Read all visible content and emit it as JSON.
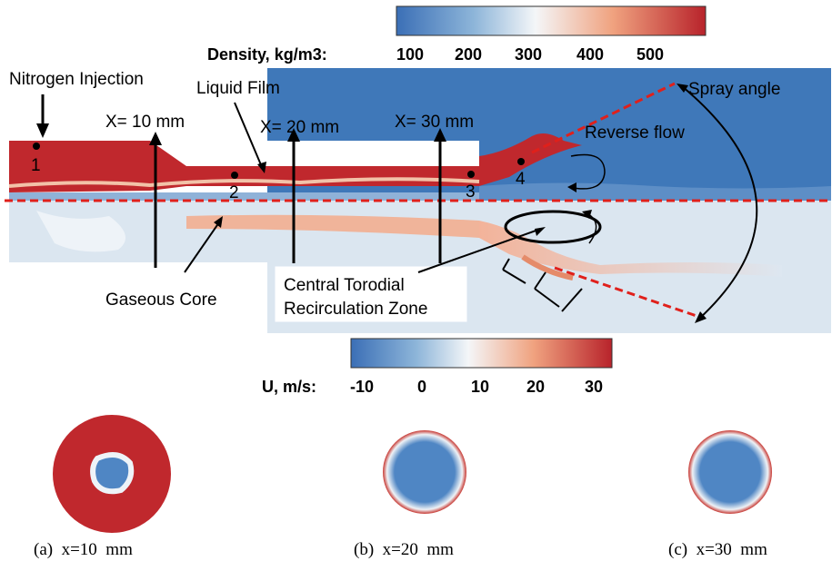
{
  "density_bar": {
    "title": "Density, kg/m3:",
    "ticks": [
      "100",
      "200",
      "300",
      "400",
      "500"
    ]
  },
  "velocity_bar": {
    "title": "U, m/s:",
    "ticks": [
      "-10",
      "0",
      "10",
      "20",
      "30"
    ]
  },
  "labels": {
    "nitrogen_injection": "Nitrogen Injection",
    "liquid_film": "Liquid Film",
    "spray_angle": "Spray angle",
    "reverse_flow": "Reverse flow",
    "gaseous_core": "Gaseous Core",
    "ctrz_line1": "Central Torodial",
    "ctrz_line2": "Recirculation Zone",
    "x10": "X= 10 mm",
    "x20": "X= 20 mm",
    "x30": "X= 30 mm"
  },
  "points": [
    "1",
    "2",
    "3",
    "4"
  ],
  "captions": [
    "(a)  x=10  mm",
    "(b)  x=20  mm",
    "(c)  x=30  mm"
  ],
  "colors": {
    "liquid": "#c0282d",
    "gas": "#3f78b9",
    "axis_line": "#e0201b"
  }
}
